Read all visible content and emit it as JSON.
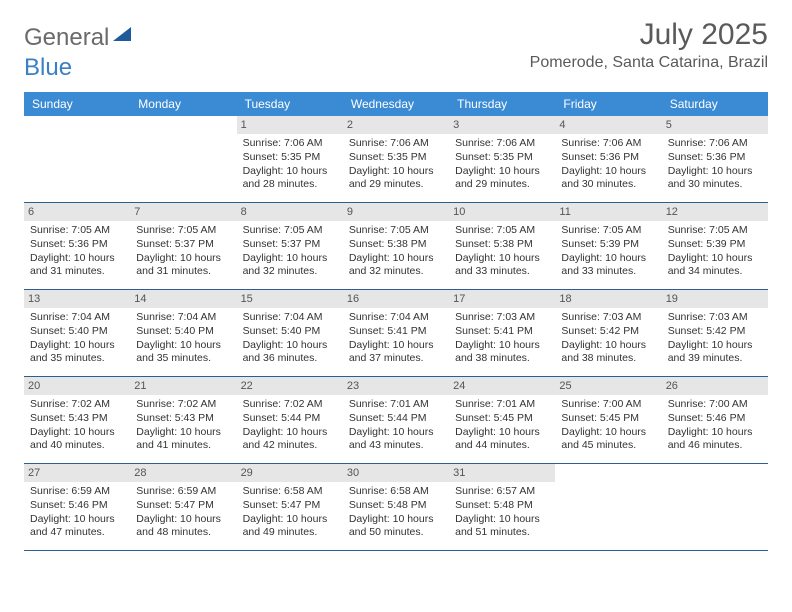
{
  "brand": {
    "word1": "General",
    "word2": "Blue"
  },
  "header": {
    "month_title": "July 2025",
    "location": "Pomerode, Santa Catarina, Brazil"
  },
  "day_headers": [
    "Sunday",
    "Monday",
    "Tuesday",
    "Wednesday",
    "Thursday",
    "Friday",
    "Saturday"
  ],
  "colors": {
    "header_bg": "#3b8bd4",
    "border": "#2b5f91",
    "daynum_bg": "#e6e6e6"
  },
  "weeks": [
    [
      {
        "empty": true
      },
      {
        "empty": true
      },
      {
        "day": "1",
        "sunrise": "7:06 AM",
        "sunset": "5:35 PM",
        "daylight": "10 hours and 28 minutes."
      },
      {
        "day": "2",
        "sunrise": "7:06 AM",
        "sunset": "5:35 PM",
        "daylight": "10 hours and 29 minutes."
      },
      {
        "day": "3",
        "sunrise": "7:06 AM",
        "sunset": "5:35 PM",
        "daylight": "10 hours and 29 minutes."
      },
      {
        "day": "4",
        "sunrise": "7:06 AM",
        "sunset": "5:36 PM",
        "daylight": "10 hours and 30 minutes."
      },
      {
        "day": "5",
        "sunrise": "7:06 AM",
        "sunset": "5:36 PM",
        "daylight": "10 hours and 30 minutes."
      }
    ],
    [
      {
        "day": "6",
        "sunrise": "7:05 AM",
        "sunset": "5:36 PM",
        "daylight": "10 hours and 31 minutes."
      },
      {
        "day": "7",
        "sunrise": "7:05 AM",
        "sunset": "5:37 PM",
        "daylight": "10 hours and 31 minutes."
      },
      {
        "day": "8",
        "sunrise": "7:05 AM",
        "sunset": "5:37 PM",
        "daylight": "10 hours and 32 minutes."
      },
      {
        "day": "9",
        "sunrise": "7:05 AM",
        "sunset": "5:38 PM",
        "daylight": "10 hours and 32 minutes."
      },
      {
        "day": "10",
        "sunrise": "7:05 AM",
        "sunset": "5:38 PM",
        "daylight": "10 hours and 33 minutes."
      },
      {
        "day": "11",
        "sunrise": "7:05 AM",
        "sunset": "5:39 PM",
        "daylight": "10 hours and 33 minutes."
      },
      {
        "day": "12",
        "sunrise": "7:05 AM",
        "sunset": "5:39 PM",
        "daylight": "10 hours and 34 minutes."
      }
    ],
    [
      {
        "day": "13",
        "sunrise": "7:04 AM",
        "sunset": "5:40 PM",
        "daylight": "10 hours and 35 minutes."
      },
      {
        "day": "14",
        "sunrise": "7:04 AM",
        "sunset": "5:40 PM",
        "daylight": "10 hours and 35 minutes."
      },
      {
        "day": "15",
        "sunrise": "7:04 AM",
        "sunset": "5:40 PM",
        "daylight": "10 hours and 36 minutes."
      },
      {
        "day": "16",
        "sunrise": "7:04 AM",
        "sunset": "5:41 PM",
        "daylight": "10 hours and 37 minutes."
      },
      {
        "day": "17",
        "sunrise": "7:03 AM",
        "sunset": "5:41 PM",
        "daylight": "10 hours and 38 minutes."
      },
      {
        "day": "18",
        "sunrise": "7:03 AM",
        "sunset": "5:42 PM",
        "daylight": "10 hours and 38 minutes."
      },
      {
        "day": "19",
        "sunrise": "7:03 AM",
        "sunset": "5:42 PM",
        "daylight": "10 hours and 39 minutes."
      }
    ],
    [
      {
        "day": "20",
        "sunrise": "7:02 AM",
        "sunset": "5:43 PM",
        "daylight": "10 hours and 40 minutes."
      },
      {
        "day": "21",
        "sunrise": "7:02 AM",
        "sunset": "5:43 PM",
        "daylight": "10 hours and 41 minutes."
      },
      {
        "day": "22",
        "sunrise": "7:02 AM",
        "sunset": "5:44 PM",
        "daylight": "10 hours and 42 minutes."
      },
      {
        "day": "23",
        "sunrise": "7:01 AM",
        "sunset": "5:44 PM",
        "daylight": "10 hours and 43 minutes."
      },
      {
        "day": "24",
        "sunrise": "7:01 AM",
        "sunset": "5:45 PM",
        "daylight": "10 hours and 44 minutes."
      },
      {
        "day": "25",
        "sunrise": "7:00 AM",
        "sunset": "5:45 PM",
        "daylight": "10 hours and 45 minutes."
      },
      {
        "day": "26",
        "sunrise": "7:00 AM",
        "sunset": "5:46 PM",
        "daylight": "10 hours and 46 minutes."
      }
    ],
    [
      {
        "day": "27",
        "sunrise": "6:59 AM",
        "sunset": "5:46 PM",
        "daylight": "10 hours and 47 minutes."
      },
      {
        "day": "28",
        "sunrise": "6:59 AM",
        "sunset": "5:47 PM",
        "daylight": "10 hours and 48 minutes."
      },
      {
        "day": "29",
        "sunrise": "6:58 AM",
        "sunset": "5:47 PM",
        "daylight": "10 hours and 49 minutes."
      },
      {
        "day": "30",
        "sunrise": "6:58 AM",
        "sunset": "5:48 PM",
        "daylight": "10 hours and 50 minutes."
      },
      {
        "day": "31",
        "sunrise": "6:57 AM",
        "sunset": "5:48 PM",
        "daylight": "10 hours and 51 minutes."
      },
      {
        "empty": true
      },
      {
        "empty": true
      }
    ]
  ],
  "labels": {
    "sunrise_prefix": "Sunrise: ",
    "sunset_prefix": "Sunset: ",
    "daylight_prefix": "Daylight: "
  }
}
